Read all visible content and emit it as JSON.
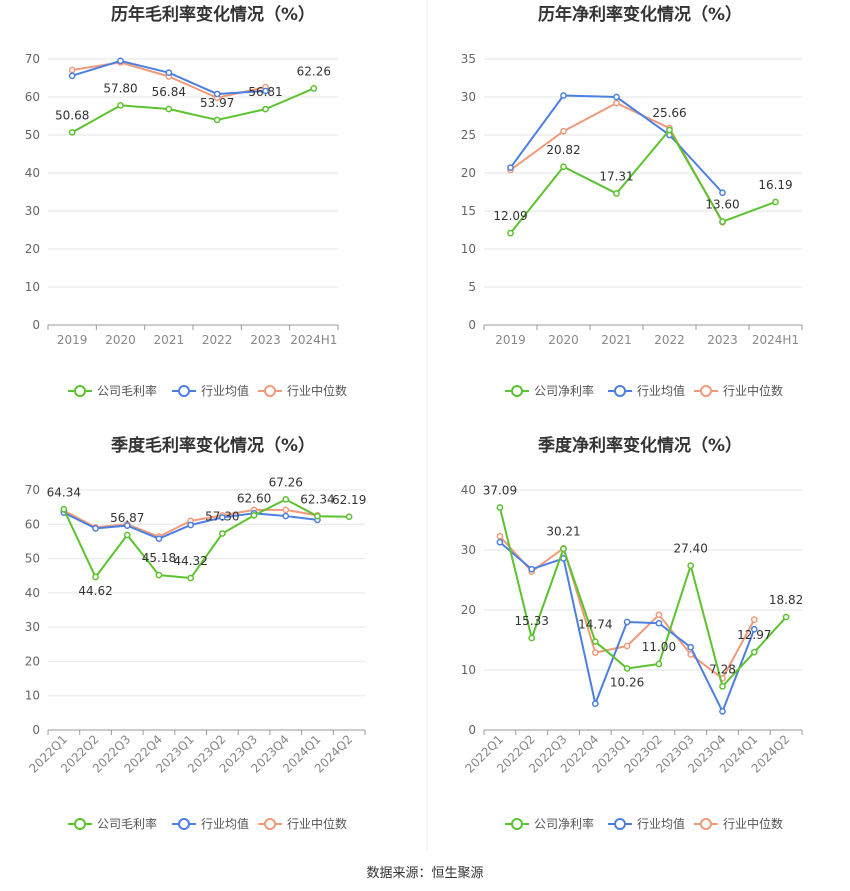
{
  "source_text": "数据来源：恒生聚源",
  "colors": {
    "company": "#5cc22f",
    "industry_avg": "#4d7fe0",
    "industry_median": "#f09a7a",
    "grid": "#e6e6e6",
    "axis": "#999999",
    "title": "#333333",
    "label": "#333333"
  },
  "chart_data": [
    {
      "type": "line",
      "title": "历年毛利率变化情况（%）",
      "categories": [
        "2019",
        "2020",
        "2021",
        "2022",
        "2023",
        "2024H1"
      ],
      "ylim": [
        0,
        70
      ],
      "yticks": [
        0,
        10,
        20,
        30,
        40,
        50,
        60,
        70
      ],
      "grid": true,
      "legend": "bottom",
      "series": [
        {
          "name": "公司毛利率",
          "values": [
            50.68,
            57.8,
            56.84,
            53.97,
            56.81,
            62.26
          ],
          "labels": [
            "50.68",
            "57.80",
            "56.84",
            "53.97",
            "56.81",
            "62.26"
          ]
        },
        {
          "name": "行业均值",
          "values": [
            65.6,
            69.5,
            66.4,
            60.8,
            61.6,
            null
          ]
        },
        {
          "name": "行业中位数",
          "values": [
            67.1,
            69.1,
            65.4,
            59.8,
            62.6,
            null
          ]
        }
      ]
    },
    {
      "type": "line",
      "title": "历年净利率变化情况（%）",
      "categories": [
        "2019",
        "2020",
        "2021",
        "2022",
        "2023",
        "2024H1"
      ],
      "ylim": [
        0,
        35
      ],
      "yticks": [
        0,
        5,
        10,
        15,
        20,
        25,
        30,
        35
      ],
      "grid": true,
      "legend": "bottom",
      "series": [
        {
          "name": "公司净利率",
          "values": [
            12.09,
            20.82,
            17.31,
            25.66,
            13.6,
            16.19
          ],
          "labels": [
            "12.09",
            "20.82",
            "17.31",
            "25.66",
            "13.60",
            "16.19"
          ]
        },
        {
          "name": "行业均值",
          "values": [
            20.7,
            30.2,
            30.0,
            25.0,
            17.4,
            null
          ]
        },
        {
          "name": "行业中位数",
          "values": [
            20.4,
            25.5,
            29.2,
            25.9,
            13.5,
            null
          ]
        }
      ]
    },
    {
      "type": "line",
      "title": "季度毛利率变化情况（%）",
      "categories": [
        "2022Q1",
        "2022Q2",
        "2022Q3",
        "2022Q4",
        "2023Q1",
        "2023Q2",
        "2023Q3",
        "2023Q4",
        "2024Q1",
        "2024Q2"
      ],
      "ylim": [
        0,
        70
      ],
      "yticks": [
        0,
        10,
        20,
        30,
        40,
        50,
        60,
        70
      ],
      "grid": true,
      "legend": "bottom",
      "series": [
        {
          "name": "公司毛利率",
          "values": [
            64.34,
            44.62,
            56.87,
            45.18,
            44.32,
            57.3,
            62.6,
            67.26,
            62.34,
            62.19
          ],
          "labels": [
            "64.34",
            "44.62",
            "56.87",
            "45.18",
            "44.32",
            "57.30",
            "62.60",
            "67.26",
            "62.34",
            "62.19"
          ]
        },
        {
          "name": "行业均值",
          "values": [
            63.4,
            58.8,
            59.6,
            55.8,
            59.8,
            62.0,
            63.2,
            62.4,
            61.3,
            null
          ]
        },
        {
          "name": "行业中位数",
          "values": [
            64.0,
            59.1,
            60.0,
            56.4,
            61.0,
            62.6,
            64.2,
            64.2,
            62.6,
            null
          ]
        }
      ]
    },
    {
      "type": "line",
      "title": "季度净利率变化情况（%）",
      "categories": [
        "2022Q1",
        "2022Q2",
        "2022Q3",
        "2022Q4",
        "2023Q1",
        "2023Q2",
        "2023Q3",
        "2023Q4",
        "2024Q1",
        "2024Q2"
      ],
      "ylim": [
        0,
        40
      ],
      "yticks": [
        0,
        10,
        20,
        30,
        40
      ],
      "grid": true,
      "legend": "bottom",
      "series": [
        {
          "name": "公司净利率",
          "values": [
            37.09,
            15.33,
            30.21,
            14.74,
            10.26,
            11.0,
            27.4,
            7.28,
            12.97,
            18.82
          ],
          "labels": [
            "37.09",
            "15.33",
            "30.21",
            "14.74",
            "10.26",
            "11.00",
            "27.40",
            "7.28",
            "12.97",
            "18.82"
          ]
        },
        {
          "name": "行业均值",
          "values": [
            31.3,
            26.8,
            28.6,
            4.4,
            18.0,
            17.8,
            13.8,
            3.1,
            16.8,
            null
          ]
        },
        {
          "name": "行业中位数",
          "values": [
            32.3,
            26.4,
            30.3,
            12.9,
            14.0,
            19.2,
            12.6,
            8.6,
            18.4,
            null
          ]
        }
      ]
    }
  ]
}
